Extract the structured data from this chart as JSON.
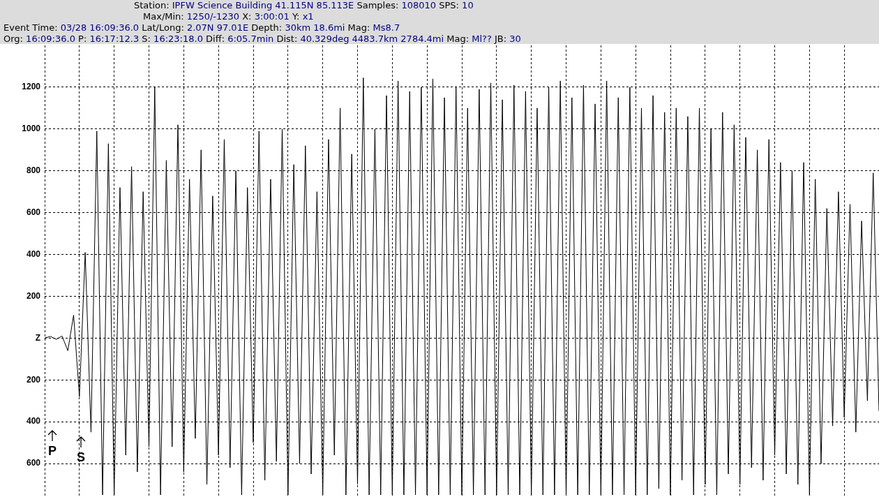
{
  "chart_data": {
    "type": "line",
    "title": "Station: IPFW Science Building 41.115N 85.113E Samples: 108010 SPS: 10",
    "subtitle": "Max/Min: 1250/-1230 X: 3:00:01 Y: x1",
    "annotations": [
      "Event Time: 03/28 16:09:36.0 Lat/Long: 2.07N 97.01E Depth: 30km 18.6mi Mag: Ms8.7",
      "Org: 16:09:36.0 P: 16:17:12.3 S: 16:23:18.0 Diff: 6:05.7min Dist: 40.329deg 4483.7km 2784.4mi Mag: Ml?? JB: 30",
      "P",
      "S"
    ],
    "categories": [
      null,
      null,
      null,
      null,
      null,
      null,
      null,
      null,
      null,
      null,
      null,
      null,
      null,
      null,
      null,
      null,
      null,
      null,
      null,
      null,
      null,
      null,
      null,
      null,
      null,
      null,
      null,
      null,
      null,
      null,
      null,
      null,
      null,
      null,
      null,
      null,
      null,
      null,
      null,
      null,
      null,
      null,
      null,
      null,
      null,
      null,
      null,
      null,
      null,
      null,
      null,
      null,
      null,
      null,
      null,
      null,
      null,
      null,
      null,
      null,
      null,
      null,
      null,
      null,
      null,
      null,
      null,
      null,
      null,
      null,
      null,
      null,
      null,
      null,
      null,
      null,
      null,
      null,
      null,
      null,
      null,
      null,
      null,
      null,
      null,
      null,
      null,
      null,
      null,
      null,
      null,
      null,
      null,
      null,
      null,
      null,
      null,
      null,
      null,
      null,
      null,
      null,
      null,
      null,
      null,
      null,
      null,
      null,
      null,
      null,
      null,
      null,
      null,
      null,
      null,
      null,
      null,
      null,
      null,
      null,
      null,
      null,
      null,
      null,
      null,
      null,
      null,
      null,
      null,
      null,
      null,
      null,
      null,
      null,
      null,
      null,
      null,
      null,
      null,
      null,
      null,
      null,
      null,
      null,
      null
    ],
    "values": [
      0,
      8,
      -6,
      10,
      -60,
      110,
      -280,
      410,
      -450,
      990,
      -750,
      930,
      -750,
      720,
      -560,
      820,
      -640,
      700,
      -520,
      1200,
      -750,
      850,
      -520,
      1020,
      -640,
      760,
      -480,
      900,
      -700,
      680,
      -560,
      950,
      -620,
      800,
      -750,
      720,
      -500,
      990,
      -680,
      760,
      -590,
      1000,
      -750,
      830,
      -600,
      920,
      -650,
      700,
      -750,
      950,
      -560,
      1100,
      -750,
      880,
      -700,
      1245,
      -750,
      1000,
      -750,
      1160,
      -750,
      1230,
      -750,
      1180,
      -750,
      1200,
      -750,
      1240,
      -750,
      1150,
      -750,
      1200,
      -750,
      1100,
      -750,
      1190,
      -750,
      1220,
      -750,
      1140,
      -750,
      1210,
      -750,
      1180,
      -750,
      1100,
      -750,
      1200,
      -750,
      1230,
      -750,
      1150,
      -750,
      1210,
      -750,
      1120,
      -750,
      1230,
      -750,
      1150,
      -750,
      1200,
      -750,
      1100,
      -750,
      1160,
      -720,
      1080,
      -750,
      1100,
      -680,
      1060,
      -750,
      1100,
      -700,
      1000,
      -750,
      1080,
      -650,
      1020,
      -700,
      960,
      -620,
      900,
      -680,
      950,
      -560,
      840,
      -650,
      800,
      -700,
      840,
      -750,
      760,
      -600,
      620,
      -420,
      700,
      -380,
      640,
      -450,
      560,
      -300,
      790,
      -350
    ],
    "color": "#000000",
    "ylim": [
      -760,
      1400
    ],
    "yticks": [
      {
        "value": -600,
        "label": "600"
      },
      {
        "value": -400,
        "label": "400"
      },
      {
        "value": -200,
        "label": "200"
      },
      {
        "value": 0,
        "label": "Z"
      },
      200,
      400,
      600,
      800,
      1000,
      1200
    ],
    "grid": true,
    "tick_labels": "y"
  }
}
